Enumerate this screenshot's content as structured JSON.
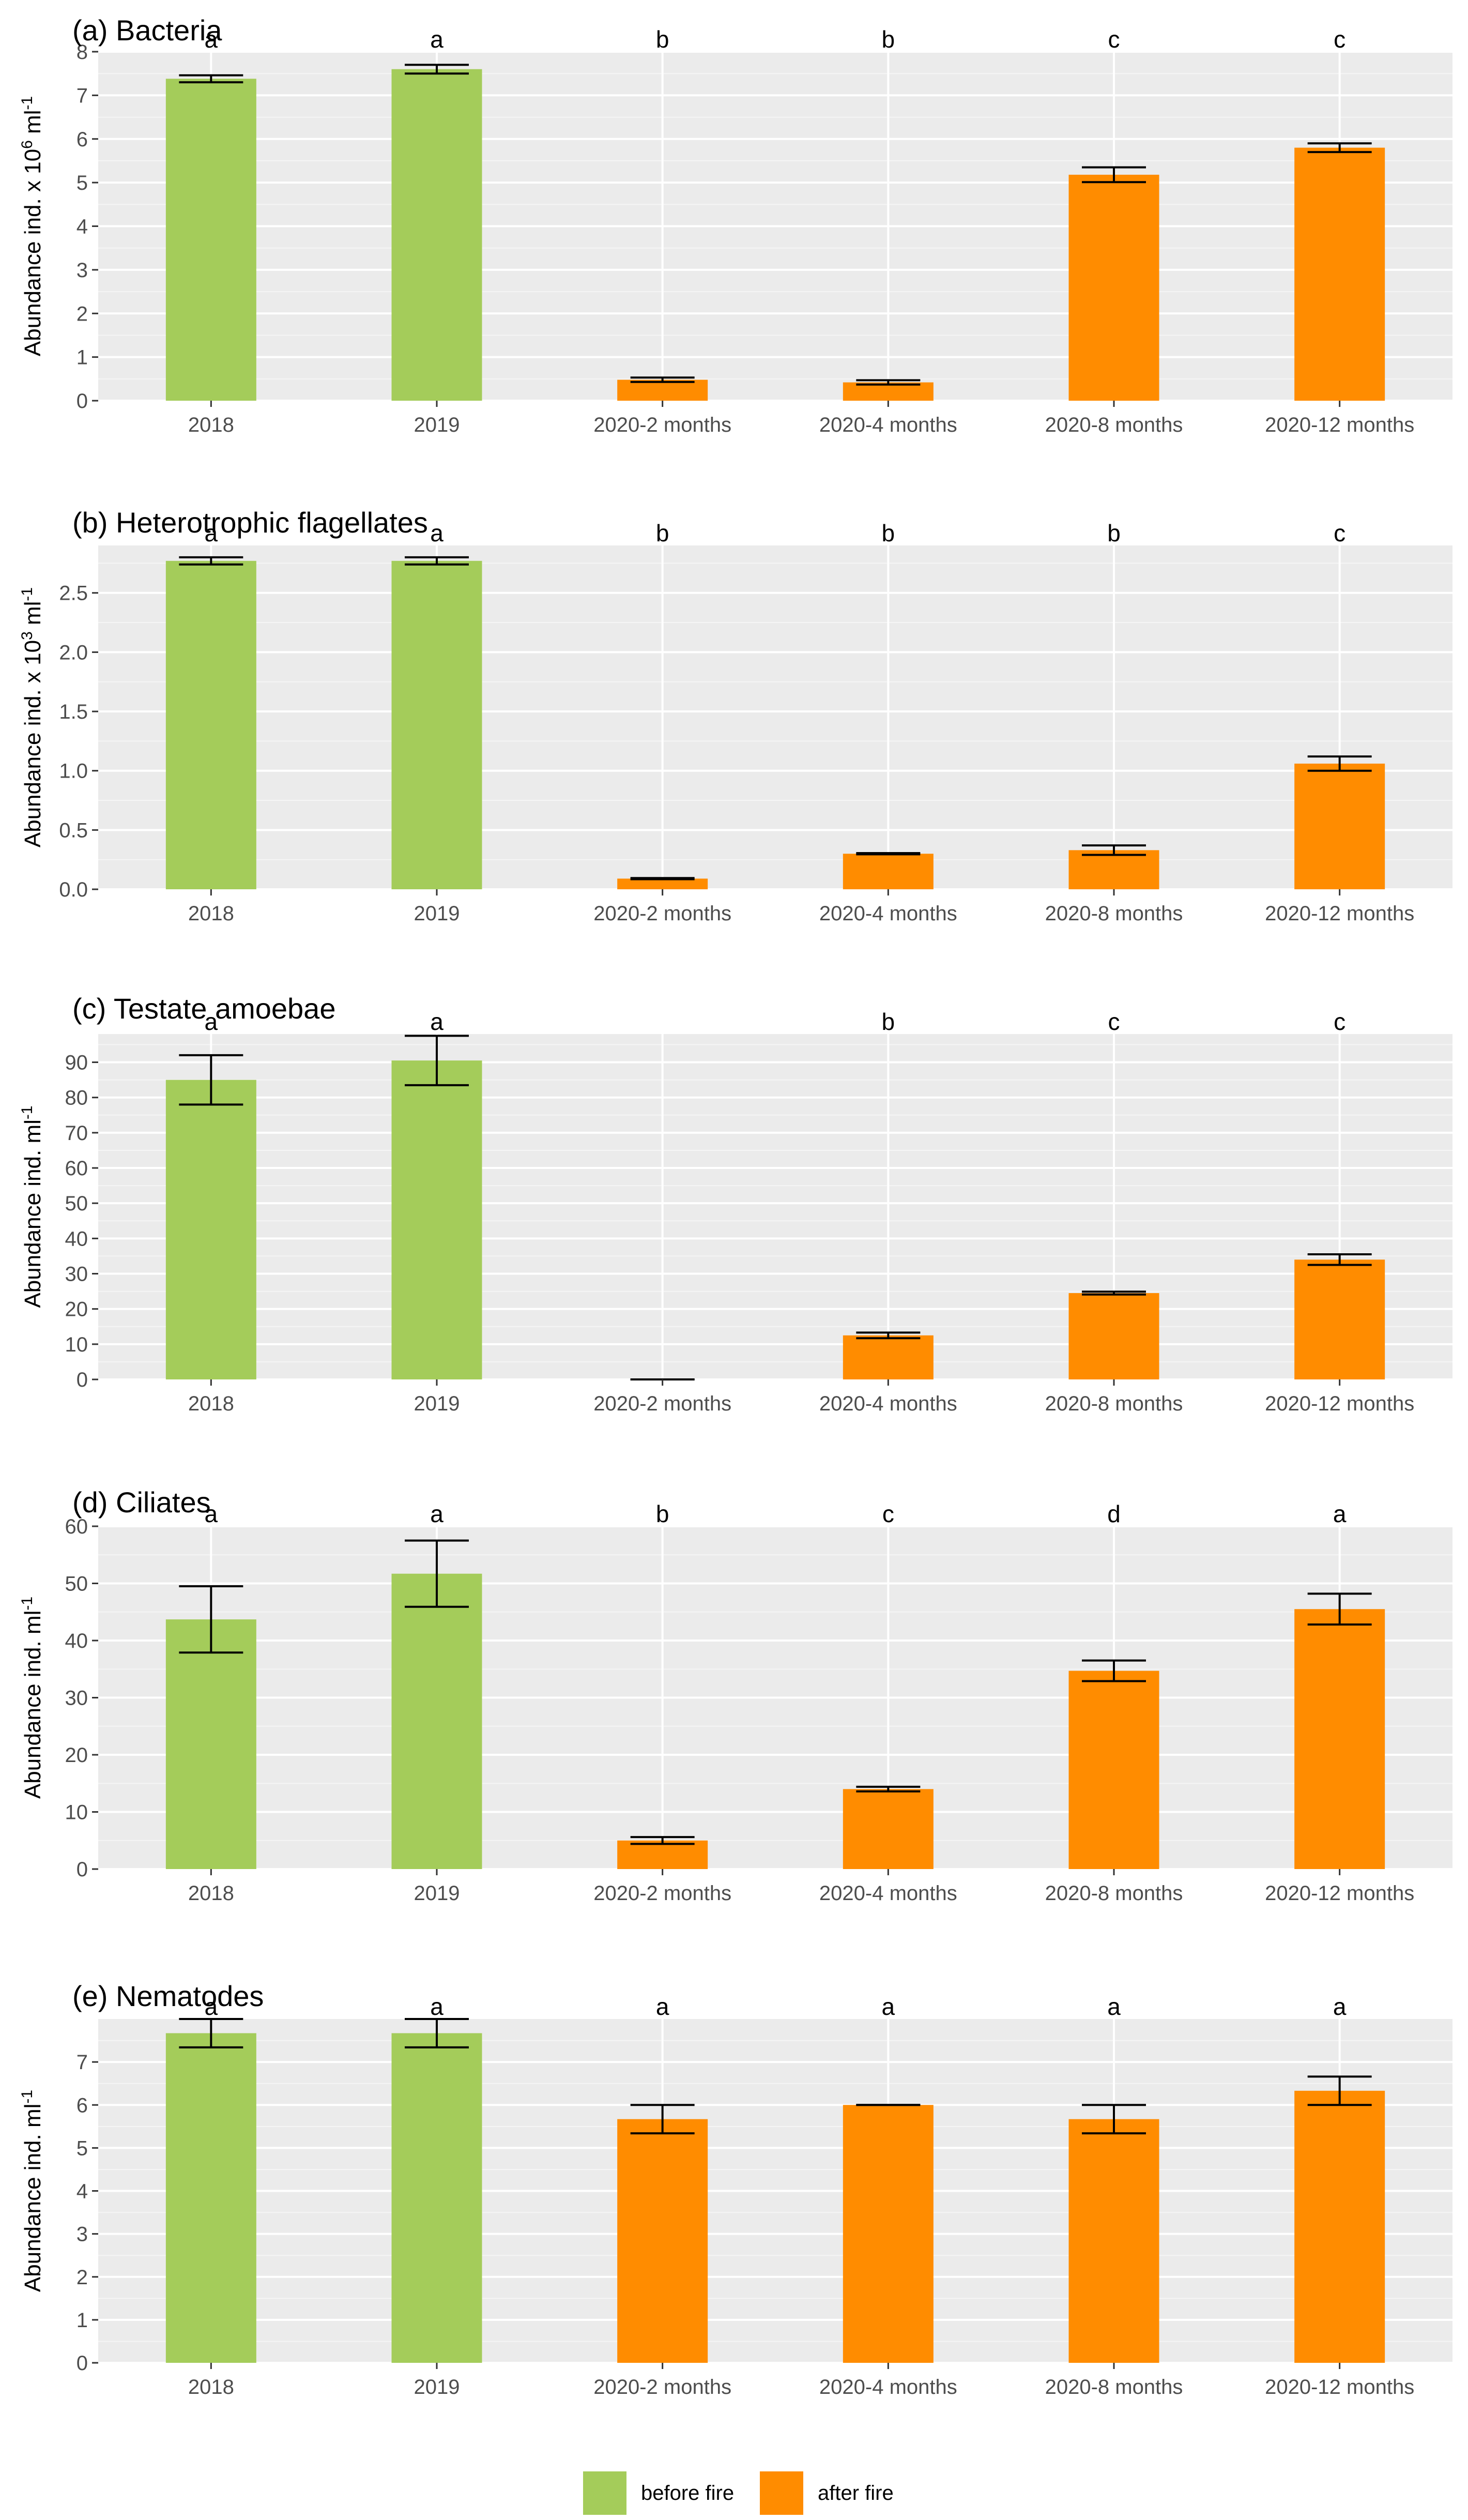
{
  "colors": {
    "before": "#a4cc5a",
    "after": "#ff8c00"
  },
  "legend": {
    "before_label": "before fire",
    "after_label": "after fire"
  },
  "chart_data": [
    {
      "type": "bar",
      "title": "(a) Bacteria",
      "ylabel": {
        "prefix": "Abundance ind. x 10",
        "exp": "6",
        "suffix": " ml",
        "sup2": "-1"
      },
      "ylim": [
        0,
        8
      ],
      "yticks": [
        0,
        1,
        2,
        3,
        4,
        5,
        6,
        7,
        8
      ],
      "yticklabels": [
        "0",
        "1",
        "2",
        "3",
        "4",
        "5",
        "6",
        "7",
        "8"
      ],
      "categories": [
        "2018",
        "2019",
        "2020-2 months",
        "2020-4 months",
        "2020-8 months",
        "2020-12 months"
      ],
      "values": [
        7.38,
        7.6,
        0.48,
        0.42,
        5.18,
        5.8
      ],
      "errors": [
        0.08,
        0.1,
        0.05,
        0.05,
        0.17,
        0.1
      ],
      "groups": [
        "before",
        "before",
        "after",
        "after",
        "after",
        "after"
      ],
      "letters": [
        "a",
        "a",
        "b",
        "b",
        "c",
        "c"
      ]
    },
    {
      "type": "bar",
      "title": "(b) Heterotrophic flagellates",
      "ylabel": {
        "prefix": "Abundance ind. x 10",
        "exp": "3",
        "suffix": " ml",
        "sup2": "-1"
      },
      "ylim": [
        0,
        2.9
      ],
      "yticks": [
        0,
        0.5,
        1.0,
        1.5,
        2.0,
        2.5
      ],
      "yticklabels": [
        "0.0",
        "0.5",
        "1.0",
        "1.5",
        "2.0",
        "2.5"
      ],
      "categories": [
        "2018",
        "2019",
        "2020-2 months",
        "2020-4 months",
        "2020-8 months",
        "2020-12 months"
      ],
      "values": [
        2.77,
        2.77,
        0.09,
        0.3,
        0.33,
        1.06
      ],
      "errors": [
        0.03,
        0.03,
        0.005,
        0.005,
        0.04,
        0.06
      ],
      "groups": [
        "before",
        "before",
        "after",
        "after",
        "after",
        "after"
      ],
      "letters": [
        "a",
        "a",
        "b",
        "b",
        "b",
        "c"
      ]
    },
    {
      "type": "bar",
      "title": "(c) Testate amoebae",
      "ylabel": {
        "prefix": "Abundance ind. ml",
        "exp": "-1",
        "suffix": "",
        "sup2": ""
      },
      "ylim": [
        0,
        98
      ],
      "yticks": [
        0,
        10,
        20,
        30,
        40,
        50,
        60,
        70,
        80,
        90
      ],
      "yticklabels": [
        "0",
        "10",
        "20",
        "30",
        "40",
        "50",
        "60",
        "70",
        "80",
        "90"
      ],
      "categories": [
        "2018",
        "2019",
        "2020-2 months",
        "2020-4 months",
        "2020-8 months",
        "2020-12 months"
      ],
      "values": [
        85,
        90.5,
        0,
        12.5,
        24.5,
        34
      ],
      "errors": [
        7,
        7,
        0,
        0.8,
        0.4,
        1.5
      ],
      "groups": [
        "before",
        "before",
        "after",
        "after",
        "after",
        "after"
      ],
      "letters": [
        "a",
        "a",
        "",
        "b",
        "c",
        "c"
      ]
    },
    {
      "type": "bar",
      "title": "(d) Ciliates",
      "ylabel": {
        "prefix": "Abundance ind. ml",
        "exp": "-1",
        "suffix": "",
        "sup2": ""
      },
      "ylim": [
        0,
        60
      ],
      "yticks": [
        0,
        10,
        20,
        30,
        40,
        50,
        60
      ],
      "yticklabels": [
        "0",
        "10",
        "20",
        "30",
        "40",
        "50",
        "60"
      ],
      "categories": [
        "2018",
        "2019",
        "2020-2 months",
        "2020-4 months",
        "2020-8 months",
        "2020-12 months"
      ],
      "values": [
        43.7,
        51.7,
        5,
        14,
        34.7,
        45.5
      ],
      "errors": [
        5.8,
        5.8,
        0.6,
        0.4,
        1.8,
        2.7
      ],
      "groups": [
        "before",
        "before",
        "after",
        "after",
        "after",
        "after"
      ],
      "letters": [
        "a",
        "a",
        "b",
        "c",
        "d",
        "a"
      ]
    },
    {
      "type": "bar",
      "title": "(e) Nematodes",
      "ylabel": {
        "prefix": "Abundance ind. ml",
        "exp": "-1",
        "suffix": "",
        "sup2": ""
      },
      "ylim": [
        0,
        8
      ],
      "yticks": [
        0,
        1,
        2,
        3,
        4,
        5,
        6,
        7
      ],
      "yticklabels": [
        "0",
        "1",
        "2",
        "3",
        "4",
        "5",
        "6",
        "7"
      ],
      "categories": [
        "2018",
        "2019",
        "2020-2 months",
        "2020-4 months",
        "2020-8 months",
        "2020-12 months"
      ],
      "values": [
        7.67,
        7.67,
        5.67,
        6,
        5.67,
        6.33
      ],
      "errors": [
        0.33,
        0.33,
        0.33,
        0,
        0.33,
        0.33
      ],
      "groups": [
        "before",
        "before",
        "after",
        "after",
        "after",
        "after"
      ],
      "letters": [
        "a",
        "a",
        "a",
        "a",
        "a",
        "a"
      ]
    }
  ]
}
